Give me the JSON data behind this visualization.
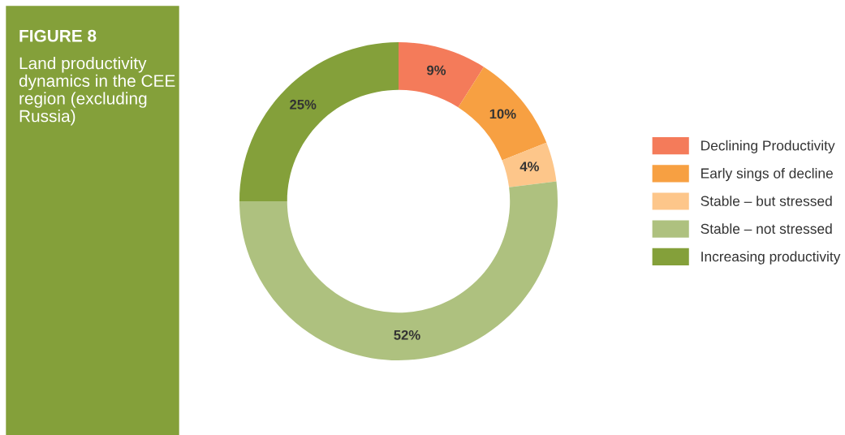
{
  "chart_data": {
    "type": "donut",
    "title": "FIGURE 8",
    "subtitle": "Land productivity dynamics in the CEE region (excluding Russia)",
    "categories": [
      "Declining Productivity",
      "Early sings of decline",
      "Stable – but stressed",
      "Stable – not stressed",
      "Increasing productivity"
    ],
    "values": [
      9,
      10,
      4,
      52,
      25
    ],
    "colors": [
      "#f47b5a",
      "#f7a042",
      "#fdc68a",
      "#aec17f",
      "#84a03a"
    ],
    "value_labels": [
      "9%",
      "10%",
      "4%",
      "52%",
      "25%"
    ],
    "legend": "right"
  }
}
